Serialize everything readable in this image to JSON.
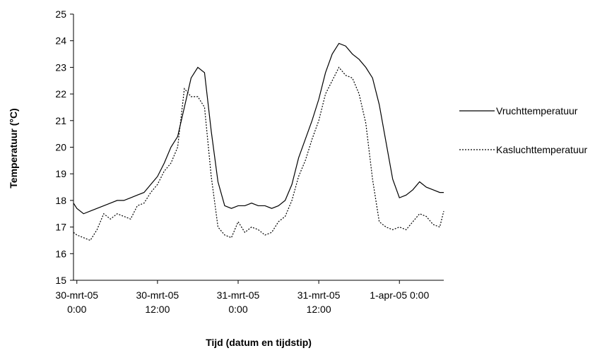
{
  "chart_data": {
    "type": "line",
    "xlabel": "Tijd (datum en tijdstip)",
    "ylabel": "Temperatuur (°C)",
    "x": [
      -0.5,
      0,
      1,
      2,
      3,
      4,
      5,
      6,
      7,
      8,
      9,
      10,
      11,
      12,
      13,
      14,
      15,
      16,
      17,
      18,
      19,
      20,
      21,
      22,
      23,
      24,
      25,
      26,
      27,
      28,
      29,
      30,
      31,
      32,
      33,
      34,
      35,
      36,
      37,
      38,
      39,
      40,
      41,
      42,
      43,
      44,
      45,
      46,
      47,
      48,
      49,
      50,
      51,
      52,
      53,
      54,
      54.6
    ],
    "series": [
      {
        "name": "Vruchttemperatuur",
        "color": "#000000",
        "line_style": "solid",
        "values": [
          17.9,
          17.7,
          17.5,
          17.6,
          17.7,
          17.8,
          17.9,
          18.0,
          18.0,
          18.1,
          18.2,
          18.3,
          18.6,
          18.9,
          19.4,
          20.0,
          20.4,
          21.5,
          22.6,
          23.0,
          22.8,
          20.6,
          18.7,
          17.8,
          17.7,
          17.8,
          17.8,
          17.9,
          17.8,
          17.8,
          17.7,
          17.8,
          18.0,
          18.6,
          19.6,
          20.3,
          21.0,
          21.8,
          22.8,
          23.5,
          23.9,
          23.8,
          23.5,
          23.3,
          23.0,
          22.6,
          21.6,
          20.2,
          18.8,
          18.1,
          18.2,
          18.4,
          18.7,
          18.5,
          18.4,
          18.3,
          18.3
        ]
      },
      {
        "name": "Kasluchttemperatuur",
        "color": "#000000",
        "line_style": "dotted",
        "values": [
          16.8,
          16.7,
          16.6,
          16.5,
          16.9,
          17.5,
          17.3,
          17.5,
          17.4,
          17.3,
          17.8,
          17.9,
          18.3,
          18.6,
          19.1,
          19.4,
          20.0,
          22.2,
          21.9,
          21.9,
          21.5,
          18.9,
          17.0,
          16.7,
          16.6,
          17.2,
          16.8,
          17.0,
          16.9,
          16.7,
          16.8,
          17.2,
          17.4,
          18.0,
          18.9,
          19.5,
          20.3,
          21.0,
          22.0,
          22.5,
          23.0,
          22.7,
          22.6,
          22.0,
          20.9,
          18.8,
          17.2,
          17.0,
          16.9,
          17.0,
          16.9,
          17.2,
          17.5,
          17.4,
          17.1,
          17.0,
          17.6
        ]
      }
    ],
    "xlim": [
      -0.5,
      54.6
    ],
    "xticks": [
      {
        "value": 0,
        "label": [
          "30-mrt-05",
          "0:00"
        ]
      },
      {
        "value": 12,
        "label": [
          "30-mrt-05",
          "12:00"
        ]
      },
      {
        "value": 24,
        "label": [
          "31-mrt-05",
          "0:00"
        ]
      },
      {
        "value": 36,
        "label": [
          "31-mrt-05",
          "12:00"
        ]
      },
      {
        "value": 48,
        "label": [
          "1-apr-05 0:00"
        ]
      }
    ],
    "ylim": [
      15,
      25
    ],
    "yticks": [
      15,
      16,
      17,
      18,
      19,
      20,
      21,
      22,
      23,
      24,
      25
    ],
    "grid": false,
    "legend": "right"
  }
}
